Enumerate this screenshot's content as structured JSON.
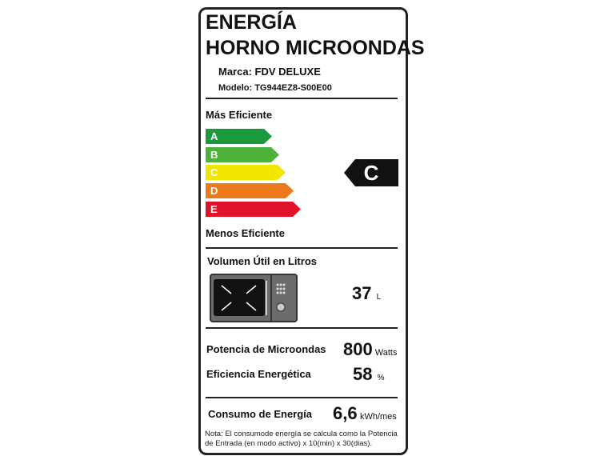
{
  "header": {
    "title1": "ENERGÍA",
    "title2": "HORNO MICROONDAS",
    "brand": "Marca: FDV DELUXE",
    "model": "Modelo: TG944EZ8-S00E00"
  },
  "scale": {
    "top_label": "Más Eficiente",
    "bottom_label": "Menos Eficiente",
    "classes": [
      {
        "letter": "A",
        "color": "#1a9a3c"
      },
      {
        "letter": "B",
        "color": "#4db23c"
      },
      {
        "letter": "C",
        "color": "#f2e600"
      },
      {
        "letter": "D",
        "color": "#ec7a1c"
      },
      {
        "letter": "E",
        "color": "#e3122b"
      }
    ],
    "rating": "C"
  },
  "volume": {
    "label": "Volumen Útil en Litros",
    "value": "37",
    "unit": "L"
  },
  "power": {
    "label": "Potencia de Microondas",
    "value": "800",
    "unit": "Watts"
  },
  "efficiency": {
    "label": "Eficiencia Energética",
    "value": "58",
    "unit": "%"
  },
  "consumption": {
    "label": "Consumo de Energía",
    "value": "6,6",
    "unit": "kWh/mes"
  },
  "note": "Nota: El consumode energía se calcula como la Potencia de Entrada (en modo activo) x 10(min) x 30(dias)."
}
